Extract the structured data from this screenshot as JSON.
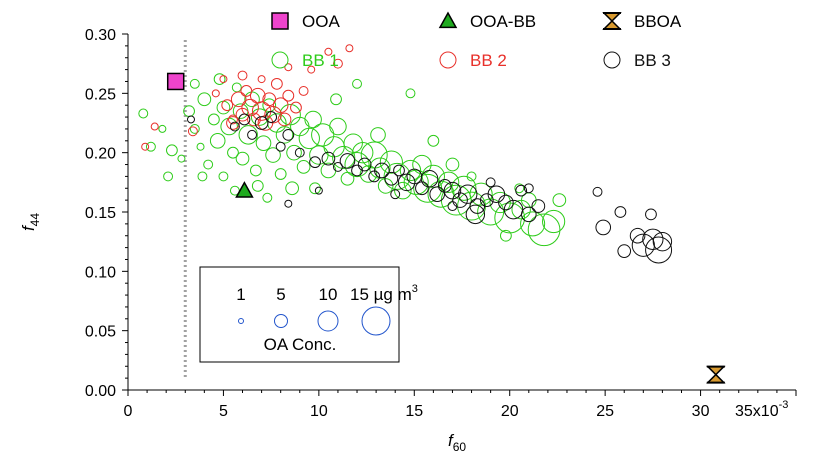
{
  "chart_data": {
    "type": "scatter",
    "xlabel": "f",
    "xlabel_sub": "60",
    "ylabel": "f",
    "ylabel_sub": "44",
    "x_multiplier_label": "35x10",
    "x_multiplier_exp": "-3",
    "xlim": [
      0,
      35
    ],
    "ylim": [
      0,
      0.3
    ],
    "x_ticks": [
      "0",
      "5",
      "10",
      "15",
      "20",
      "25",
      "30"
    ],
    "y_ticks": [
      "0.00",
      "0.05",
      "0.10",
      "0.15",
      "0.20",
      "0.25",
      "0.30"
    ],
    "reference_line": {
      "x": 3.0,
      "style": "dotted",
      "color": "#a0a0a0"
    },
    "colors": {
      "bb1": "#2ecc1a",
      "bb2": "#e8302a",
      "bb3": "#111111",
      "ooa": "#ee44cc",
      "ooabb": "#1faa1f",
      "bboa": "#d89a30",
      "size_legend": "#2255cc"
    },
    "legend": {
      "position": "top-right",
      "items": [
        {
          "label": "OOA",
          "marker": "filled-square",
          "color": "#ee44cc"
        },
        {
          "label": "OOA-BB",
          "marker": "filled-triangle",
          "color": "#1faa1f"
        },
        {
          "label": "BBOA",
          "marker": "hourglass",
          "color": "#d89a30"
        },
        {
          "label": "BB 1",
          "marker": "open-circle",
          "color": "#2ecc1a"
        },
        {
          "label": "BB 2",
          "marker": "open-circle",
          "color": "#e8302a"
        },
        {
          "label": "BB 3",
          "marker": "open-circle",
          "color": "#111111"
        }
      ]
    },
    "size_legend": {
      "position": "bottom-left",
      "title": "OA Conc.",
      "entries": [
        {
          "label": "1",
          "value": 1
        },
        {
          "label": "5",
          "value": 5
        },
        {
          "label": "10",
          "value": 10
        },
        {
          "label": "15 µg m",
          "value": 15,
          "sup": "3"
        }
      ]
    },
    "factor_points": [
      {
        "name": "OOA",
        "x": 2.5,
        "y": 0.26,
        "marker": "filled-square",
        "color": "#ee44cc"
      },
      {
        "name": "OOA-BB",
        "x": 6.1,
        "y": 0.168,
        "marker": "filled-triangle",
        "color": "#1faa1f"
      },
      {
        "name": "BBOA",
        "x": 30.8,
        "y": 0.013,
        "marker": "hourglass",
        "color": "#d89a30"
      }
    ],
    "series": [
      {
        "name": "BB 1",
        "color": "#2ecc1a",
        "points": [
          {
            "x": 0.8,
            "y": 0.233,
            "c": 3
          },
          {
            "x": 1.2,
            "y": 0.205,
            "c": 3
          },
          {
            "x": 1.8,
            "y": 0.22,
            "c": 2
          },
          {
            "x": 2.1,
            "y": 0.18,
            "c": 3
          },
          {
            "x": 2.3,
            "y": 0.202,
            "c": 4
          },
          {
            "x": 2.8,
            "y": 0.195,
            "c": 2
          },
          {
            "x": 3.2,
            "y": 0.235,
            "c": 4
          },
          {
            "x": 3.5,
            "y": 0.22,
            "c": 3
          },
          {
            "x": 3.8,
            "y": 0.205,
            "c": 2
          },
          {
            "x": 4.0,
            "y": 0.245,
            "c": 5
          },
          {
            "x": 4.2,
            "y": 0.19,
            "c": 3
          },
          {
            "x": 4.5,
            "y": 0.228,
            "c": 4
          },
          {
            "x": 4.7,
            "y": 0.21,
            "c": 6
          },
          {
            "x": 5.0,
            "y": 0.238,
            "c": 5
          },
          {
            "x": 5.0,
            "y": 0.18,
            "c": 3
          },
          {
            "x": 5.3,
            "y": 0.222,
            "c": 7
          },
          {
            "x": 5.5,
            "y": 0.2,
            "c": 4
          },
          {
            "x": 5.7,
            "y": 0.255,
            "c": 3
          },
          {
            "x": 5.9,
            "y": 0.235,
            "c": 6
          },
          {
            "x": 6.0,
            "y": 0.195,
            "c": 5
          },
          {
            "x": 6.3,
            "y": 0.215,
            "c": 8
          },
          {
            "x": 6.5,
            "y": 0.245,
            "c": 6
          },
          {
            "x": 6.7,
            "y": 0.185,
            "c": 4
          },
          {
            "x": 6.9,
            "y": 0.23,
            "c": 7
          },
          {
            "x": 7.1,
            "y": 0.208,
            "c": 6
          },
          {
            "x": 7.4,
            "y": 0.24,
            "c": 5
          },
          {
            "x": 7.6,
            "y": 0.198,
            "c": 6
          },
          {
            "x": 7.8,
            "y": 0.225,
            "c": 8
          },
          {
            "x": 8.0,
            "y": 0.182,
            "c": 4
          },
          {
            "x": 8.2,
            "y": 0.215,
            "c": 7
          },
          {
            "x": 8.5,
            "y": 0.232,
            "c": 9
          },
          {
            "x": 8.7,
            "y": 0.2,
            "c": 6
          },
          {
            "x": 9.0,
            "y": 0.222,
            "c": 8
          },
          {
            "x": 9.2,
            "y": 0.188,
            "c": 5
          },
          {
            "x": 9.5,
            "y": 0.212,
            "c": 9
          },
          {
            "x": 9.7,
            "y": 0.228,
            "c": 7
          },
          {
            "x": 10.0,
            "y": 0.198,
            "c": 8
          },
          {
            "x": 10.2,
            "y": 0.215,
            "c": 10
          },
          {
            "x": 10.5,
            "y": 0.185,
            "c": 6
          },
          {
            "x": 10.8,
            "y": 0.205,
            "c": 9
          },
          {
            "x": 11.0,
            "y": 0.222,
            "c": 7
          },
          {
            "x": 11.3,
            "y": 0.196,
            "c": 10
          },
          {
            "x": 11.5,
            "y": 0.178,
            "c": 5
          },
          {
            "x": 11.8,
            "y": 0.208,
            "c": 8
          },
          {
            "x": 12.0,
            "y": 0.19,
            "c": 11
          },
          {
            "x": 12.3,
            "y": 0.2,
            "c": 9
          },
          {
            "x": 12.6,
            "y": 0.182,
            "c": 7
          },
          {
            "x": 12.9,
            "y": 0.198,
            "c": 12
          },
          {
            "x": 13.2,
            "y": 0.187,
            "c": 9
          },
          {
            "x": 13.5,
            "y": 0.172,
            "c": 6
          },
          {
            "x": 13.8,
            "y": 0.192,
            "c": 10
          },
          {
            "x": 14.1,
            "y": 0.18,
            "c": 12
          },
          {
            "x": 14.4,
            "y": 0.168,
            "c": 7
          },
          {
            "x": 14.8,
            "y": 0.185,
            "c": 9
          },
          {
            "x": 15.1,
            "y": 0.175,
            "c": 11
          },
          {
            "x": 15.4,
            "y": 0.19,
            "c": 8
          },
          {
            "x": 15.7,
            "y": 0.17,
            "c": 13
          },
          {
            "x": 16.0,
            "y": 0.18,
            "c": 10
          },
          {
            "x": 16.4,
            "y": 0.165,
            "c": 12
          },
          {
            "x": 16.8,
            "y": 0.175,
            "c": 9
          },
          {
            "x": 17.2,
            "y": 0.16,
            "c": 14
          },
          {
            "x": 17.6,
            "y": 0.17,
            "c": 11
          },
          {
            "x": 18.0,
            "y": 0.155,
            "c": 13
          },
          {
            "x": 18.5,
            "y": 0.165,
            "c": 10
          },
          {
            "x": 19.0,
            "y": 0.15,
            "c": 12
          },
          {
            "x": 19.5,
            "y": 0.158,
            "c": 9
          },
          {
            "x": 20.0,
            "y": 0.145,
            "c": 14
          },
          {
            "x": 20.6,
            "y": 0.152,
            "c": 8
          },
          {
            "x": 21.2,
            "y": 0.14,
            "c": 11
          },
          {
            "x": 21.8,
            "y": 0.135,
            "c": 15
          },
          {
            "x": 22.3,
            "y": 0.142,
            "c": 10
          },
          {
            "x": 3.5,
            "y": 0.258,
            "c": 3
          },
          {
            "x": 4.8,
            "y": 0.262,
            "c": 4
          },
          {
            "x": 6.8,
            "y": 0.172,
            "c": 4
          },
          {
            "x": 7.3,
            "y": 0.162,
            "c": 3
          },
          {
            "x": 9.8,
            "y": 0.17,
            "c": 4
          },
          {
            "x": 12.0,
            "y": 0.258,
            "c": 3
          },
          {
            "x": 14.8,
            "y": 0.25,
            "c": 3
          },
          {
            "x": 16.0,
            "y": 0.21,
            "c": 4
          },
          {
            "x": 18.0,
            "y": 0.18,
            "c": 3
          },
          {
            "x": 20.5,
            "y": 0.17,
            "c": 3
          },
          {
            "x": 22.6,
            "y": 0.16,
            "c": 5
          },
          {
            "x": 19.8,
            "y": 0.13,
            "c": 4
          },
          {
            "x": 8.6,
            "y": 0.17,
            "c": 5
          },
          {
            "x": 5.6,
            "y": 0.168,
            "c": 3
          },
          {
            "x": 3.9,
            "y": 0.18,
            "c": 3
          },
          {
            "x": 10.9,
            "y": 0.245,
            "c": 4
          },
          {
            "x": 13.1,
            "y": 0.215,
            "c": 6
          },
          {
            "x": 17.0,
            "y": 0.19,
            "c": 5
          },
          {
            "x": 21.0,
            "y": 0.16,
            "c": 6
          }
        ]
      },
      {
        "name": "BB 2",
        "color": "#e8302a",
        "points": [
          {
            "x": 0.9,
            "y": 0.205,
            "c": 2
          },
          {
            "x": 1.4,
            "y": 0.222,
            "c": 2
          },
          {
            "x": 3.4,
            "y": 0.218,
            "c": 3
          },
          {
            "x": 4.6,
            "y": 0.25,
            "c": 2
          },
          {
            "x": 5.2,
            "y": 0.24,
            "c": 4
          },
          {
            "x": 5.5,
            "y": 0.225,
            "c": 5
          },
          {
            "x": 5.8,
            "y": 0.245,
            "c": 6
          },
          {
            "x": 6.0,
            "y": 0.232,
            "c": 5
          },
          {
            "x": 6.2,
            "y": 0.252,
            "c": 4
          },
          {
            "x": 6.4,
            "y": 0.238,
            "c": 7
          },
          {
            "x": 6.6,
            "y": 0.228,
            "c": 5
          },
          {
            "x": 6.8,
            "y": 0.248,
            "c": 6
          },
          {
            "x": 7.0,
            "y": 0.235,
            "c": 8
          },
          {
            "x": 7.2,
            "y": 0.225,
            "c": 6
          },
          {
            "x": 7.4,
            "y": 0.245,
            "c": 5
          },
          {
            "x": 7.6,
            "y": 0.232,
            "c": 7
          },
          {
            "x": 7.8,
            "y": 0.258,
            "c": 4
          },
          {
            "x": 8.0,
            "y": 0.24,
            "c": 6
          },
          {
            "x": 8.2,
            "y": 0.228,
            "c": 5
          },
          {
            "x": 8.4,
            "y": 0.248,
            "c": 4
          },
          {
            "x": 8.8,
            "y": 0.238,
            "c": 4
          },
          {
            "x": 9.2,
            "y": 0.252,
            "c": 3
          },
          {
            "x": 5.0,
            "y": 0.262,
            "c": 2
          },
          {
            "x": 6.0,
            "y": 0.265,
            "c": 3
          },
          {
            "x": 7.0,
            "y": 0.262,
            "c": 2
          },
          {
            "x": 9.6,
            "y": 0.27,
            "c": 2
          },
          {
            "x": 10.5,
            "y": 0.285,
            "c": 2
          },
          {
            "x": 11.0,
            "y": 0.275,
            "c": 3
          },
          {
            "x": 11.6,
            "y": 0.288,
            "c": 2
          },
          {
            "x": 8.4,
            "y": 0.272,
            "c": 2
          },
          {
            "x": 5.5,
            "y": 0.228,
            "c": 3
          }
        ]
      },
      {
        "name": "BB 3",
        "color": "#111111",
        "points": [
          {
            "x": 3.3,
            "y": 0.228,
            "c": 2
          },
          {
            "x": 5.6,
            "y": 0.222,
            "c": 3
          },
          {
            "x": 6.1,
            "y": 0.228,
            "c": 4
          },
          {
            "x": 6.5,
            "y": 0.215,
            "c": 3
          },
          {
            "x": 7.0,
            "y": 0.225,
            "c": 5
          },
          {
            "x": 7.5,
            "y": 0.23,
            "c": 4
          },
          {
            "x": 8.0,
            "y": 0.205,
            "c": 3
          },
          {
            "x": 8.4,
            "y": 0.215,
            "c": 4
          },
          {
            "x": 9.0,
            "y": 0.2,
            "c": 3
          },
          {
            "x": 9.8,
            "y": 0.192,
            "c": 4
          },
          {
            "x": 10.5,
            "y": 0.195,
            "c": 5
          },
          {
            "x": 11.0,
            "y": 0.188,
            "c": 3
          },
          {
            "x": 11.5,
            "y": 0.193,
            "c": 6
          },
          {
            "x": 12.0,
            "y": 0.185,
            "c": 4
          },
          {
            "x": 12.4,
            "y": 0.19,
            "c": 5
          },
          {
            "x": 12.9,
            "y": 0.18,
            "c": 4
          },
          {
            "x": 13.3,
            "y": 0.185,
            "c": 6
          },
          {
            "x": 13.8,
            "y": 0.178,
            "c": 5
          },
          {
            "x": 14.2,
            "y": 0.185,
            "c": 4
          },
          {
            "x": 14.6,
            "y": 0.175,
            "c": 7
          },
          {
            "x": 15.0,
            "y": 0.18,
            "c": 6
          },
          {
            "x": 15.4,
            "y": 0.17,
            "c": 5
          },
          {
            "x": 15.8,
            "y": 0.178,
            "c": 7
          },
          {
            "x": 16.2,
            "y": 0.165,
            "c": 6
          },
          {
            "x": 16.6,
            "y": 0.172,
            "c": 5
          },
          {
            "x": 17.0,
            "y": 0.168,
            "c": 7
          },
          {
            "x": 17.4,
            "y": 0.16,
            "c": 6
          },
          {
            "x": 17.8,
            "y": 0.165,
            "c": 8
          },
          {
            "x": 18.3,
            "y": 0.155,
            "c": 6
          },
          {
            "x": 18.8,
            "y": 0.16,
            "c": 5
          },
          {
            "x": 19.3,
            "y": 0.165,
            "c": 7
          },
          {
            "x": 19.8,
            "y": 0.158,
            "c": 6
          },
          {
            "x": 20.2,
            "y": 0.152,
            "c": 8
          },
          {
            "x": 20.6,
            "y": 0.168,
            "c": 4
          },
          {
            "x": 21.0,
            "y": 0.148,
            "c": 6
          },
          {
            "x": 21.5,
            "y": 0.155,
            "c": 5
          },
          {
            "x": 18.2,
            "y": 0.148,
            "c": 8
          },
          {
            "x": 17.0,
            "y": 0.155,
            "c": 3
          },
          {
            "x": 14.0,
            "y": 0.165,
            "c": 3
          },
          {
            "x": 10.0,
            "y": 0.168,
            "c": 2
          },
          {
            "x": 8.4,
            "y": 0.157,
            "c": 2
          },
          {
            "x": 19.0,
            "y": 0.175,
            "c": 3
          },
          {
            "x": 21.0,
            "y": 0.17,
            "c": 3
          },
          {
            "x": 24.6,
            "y": 0.167,
            "c": 3
          },
          {
            "x": 25.8,
            "y": 0.15,
            "c": 4
          },
          {
            "x": 24.9,
            "y": 0.137,
            "c": 6
          },
          {
            "x": 27.4,
            "y": 0.148,
            "c": 4
          },
          {
            "x": 26.0,
            "y": 0.117,
            "c": 5
          },
          {
            "x": 27.0,
            "y": 0.122,
            "c": 10
          },
          {
            "x": 27.5,
            "y": 0.127,
            "c": 9
          },
          {
            "x": 27.8,
            "y": 0.118,
            "c": 12
          },
          {
            "x": 28.0,
            "y": 0.125,
            "c": 8
          },
          {
            "x": 26.7,
            "y": 0.13,
            "c": 6
          }
        ]
      }
    ]
  }
}
